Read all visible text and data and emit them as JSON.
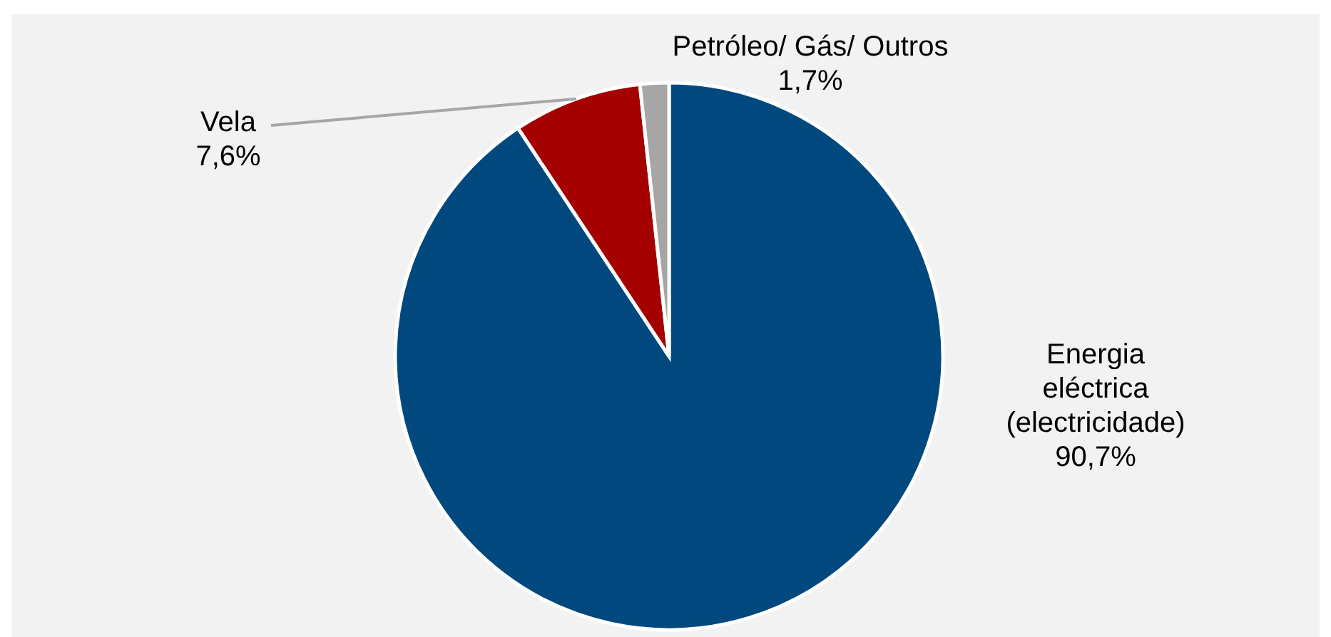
{
  "chart_data": {
    "type": "pie",
    "categories": [
      "Energia eléctrica (electricidade)",
      "Vela",
      "Petróleo/ Gás/ Outros"
    ],
    "values": [
      90.7,
      7.6,
      1.7
    ],
    "colors": [
      "#00487d",
      "#a50000",
      "#a6a6a6"
    ],
    "value_labels": [
      "90,7%",
      "7,6%",
      "1,7%"
    ]
  }
}
